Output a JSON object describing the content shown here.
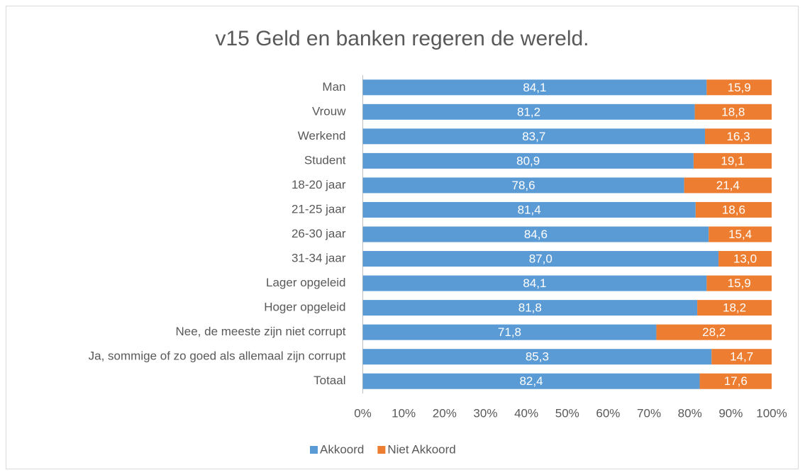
{
  "chart_data": {
    "type": "stacked_barh",
    "title": "v15 Geld en banken regeren de wereld.",
    "categories": [
      "Man",
      "Vrouw",
      "Werkend",
      "Student",
      "18-20 jaar",
      "21-25 jaar",
      "26-30 jaar",
      "31-34 jaar",
      "Lager opgeleid",
      "Hoger opgeleid",
      "Nee, de meeste zijn niet corrupt",
      "Ja, sommige of zo goed als allemaal zijn corrupt",
      "Totaal"
    ],
    "series": [
      {
        "name": "Akkoord",
        "color": "#5b9bd5",
        "values": [
          84.1,
          81.2,
          83.7,
          80.9,
          78.6,
          81.4,
          84.6,
          87.0,
          84.1,
          81.8,
          71.8,
          85.3,
          82.4
        ],
        "value_labels": [
          "84,1",
          "81,2",
          "83,7",
          "80,9",
          "78,6",
          "81,4",
          "84,6",
          "87,0",
          "84,1",
          "81,8",
          "71,8",
          "85,3",
          "82,4"
        ]
      },
      {
        "name": "Niet Akkoord",
        "color": "#ed7d31",
        "values": [
          15.9,
          18.8,
          16.3,
          19.1,
          21.4,
          18.6,
          15.4,
          13.0,
          15.9,
          18.2,
          28.2,
          14.7,
          17.6
        ],
        "value_labels": [
          "15,9",
          "18,8",
          "16,3",
          "19,1",
          "21,4",
          "18,6",
          "15,4",
          "13,0",
          "15,9",
          "18,2",
          "28,2",
          "14,7",
          "17,6"
        ]
      }
    ],
    "xlim": [
      0,
      100
    ],
    "xticks": [
      {
        "value": 0,
        "label": "0%"
      },
      {
        "value": 10,
        "label": "10%"
      },
      {
        "value": 20,
        "label": "20%"
      },
      {
        "value": 30,
        "label": "30%"
      },
      {
        "value": 40,
        "label": "40%"
      },
      {
        "value": 50,
        "label": "50%"
      },
      {
        "value": 60,
        "label": "60%"
      },
      {
        "value": 70,
        "label": "70%"
      },
      {
        "value": 80,
        "label": "80%"
      },
      {
        "value": 90,
        "label": "90%"
      },
      {
        "value": 100,
        "label": "100%"
      }
    ],
    "grid": false,
    "legend": "bottom"
  }
}
